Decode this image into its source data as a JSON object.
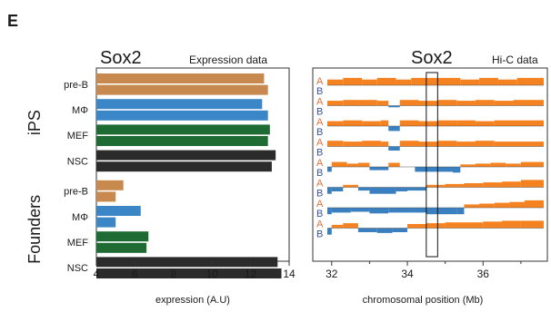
{
  "panel_label": "E",
  "colors": {
    "pre-B": "#C8894E",
    "MΦ": "#3A86C6",
    "MEF": "#1E6B33",
    "NSC": "#2B2B2B",
    "compA": "#F58220",
    "compB": "#3A7FC0",
    "letterA": "#E0703A",
    "letterB": "#3A52A0"
  },
  "chart_data": [
    {
      "type": "bar",
      "orientation": "horizontal",
      "title": "Sox2",
      "subtitle": "Expression data",
      "xlabel": "expression (A.U)",
      "xlim": [
        4,
        14
      ],
      "xticks": [
        "4",
        "6",
        "8",
        "10",
        "12",
        "14"
      ],
      "groups": [
        {
          "name": "iPS",
          "categories": [
            {
              "label": "pre-B",
              "values": [
                12.7,
                12.9
              ]
            },
            {
              "label": "MΦ",
              "values": [
                12.6,
                12.9
              ]
            },
            {
              "label": "MEF",
              "values": [
                13.0,
                12.9
              ]
            },
            {
              "label": "NSC",
              "values": [
                13.3,
                13.1
              ]
            }
          ]
        },
        {
          "name": "Founders",
          "categories": [
            {
              "label": "pre-B",
              "values": [
                5.4,
                5.0
              ]
            },
            {
              "label": "MΦ",
              "values": [
                6.3,
                5.0
              ]
            },
            {
              "label": "MEF",
              "values": [
                6.7,
                6.6
              ]
            },
            {
              "label": "NSC",
              "values": [
                13.4,
                13.6
              ]
            }
          ]
        }
      ]
    },
    {
      "type": "area",
      "title": "Sox2",
      "subtitle": "Hi-C data",
      "xlabel": "chromosomal position (Mb)",
      "xlim": [
        31.5,
        37.7
      ],
      "xticks": [
        "32",
        "34",
        "36"
      ],
      "highlight_x": [
        34.5,
        34.8
      ],
      "track_letters": [
        "A",
        "B"
      ],
      "tracks": [
        [
          [
            31.5,
            0.0
          ],
          [
            31.7,
            0.7
          ],
          [
            32.3,
            0.9
          ],
          [
            32.8,
            0.7
          ],
          [
            33.2,
            0.9
          ],
          [
            33.7,
            0.7
          ],
          [
            34.1,
            0.9
          ],
          [
            34.9,
            0.9
          ],
          [
            35.4,
            0.7
          ],
          [
            35.9,
            0.9
          ],
          [
            36.4,
            0.7
          ],
          [
            36.9,
            0.9
          ],
          [
            37.7,
            0.9
          ]
        ],
        [
          [
            31.5,
            0.0
          ],
          [
            31.7,
            0.6
          ],
          [
            32.3,
            0.7
          ],
          [
            32.7,
            0.7
          ],
          [
            33.2,
            0.6
          ],
          [
            33.5,
            -0.2
          ],
          [
            33.8,
            0.7
          ],
          [
            34.3,
            0.6
          ],
          [
            34.8,
            0.7
          ],
          [
            35.3,
            0.6
          ],
          [
            35.8,
            0.7
          ],
          [
            36.3,
            0.6
          ],
          [
            36.8,
            0.7
          ],
          [
            37.7,
            0.7
          ]
        ],
        [
          [
            31.5,
            0.0
          ],
          [
            31.7,
            0.6
          ],
          [
            32.3,
            0.7
          ],
          [
            32.8,
            0.6
          ],
          [
            33.3,
            0.7
          ],
          [
            33.5,
            -0.6
          ],
          [
            33.8,
            0.7
          ],
          [
            34.3,
            0.6
          ],
          [
            34.8,
            0.7
          ],
          [
            35.3,
            0.7
          ],
          [
            35.8,
            0.6
          ],
          [
            36.3,
            0.7
          ],
          [
            37.7,
            0.7
          ]
        ],
        [
          [
            31.5,
            0.0
          ],
          [
            31.7,
            0.7
          ],
          [
            32.3,
            0.6
          ],
          [
            32.8,
            0.7
          ],
          [
            33.3,
            0.6
          ],
          [
            33.5,
            -0.5
          ],
          [
            33.8,
            0.7
          ],
          [
            34.3,
            0.6
          ],
          [
            34.8,
            0.7
          ],
          [
            35.3,
            0.6
          ],
          [
            35.8,
            0.7
          ],
          [
            36.3,
            0.6
          ],
          [
            37.7,
            0.7
          ]
        ],
        [
          [
            31.5,
            0.0
          ],
          [
            31.7,
            -0.6
          ],
          [
            32.0,
            0.6
          ],
          [
            32.4,
            0.4
          ],
          [
            32.7,
            0.5
          ],
          [
            33.0,
            -0.4
          ],
          [
            33.5,
            0.5
          ],
          [
            33.8,
            0.0
          ],
          [
            34.2,
            -0.6
          ],
          [
            35.2,
            -0.7
          ],
          [
            35.4,
            0.3
          ],
          [
            35.8,
            0.4
          ],
          [
            36.2,
            0.5
          ],
          [
            36.6,
            0.4
          ],
          [
            37.0,
            0.6
          ],
          [
            37.7,
            0.6
          ]
        ],
        [
          [
            31.5,
            0.0
          ],
          [
            31.7,
            -0.8
          ],
          [
            32.0,
            -0.5
          ],
          [
            32.3,
            0.3
          ],
          [
            32.7,
            -0.4
          ],
          [
            33.0,
            -0.8
          ],
          [
            33.7,
            -0.5
          ],
          [
            34.0,
            -0.4
          ],
          [
            34.5,
            0.3
          ],
          [
            35.0,
            0.4
          ],
          [
            35.5,
            0.5
          ],
          [
            36.0,
            0.6
          ],
          [
            36.5,
            0.7
          ],
          [
            37.0,
            0.9
          ],
          [
            37.7,
            0.9
          ]
        ],
        [
          [
            31.5,
            0.0
          ],
          [
            31.7,
            -0.8
          ],
          [
            32.0,
            -0.6
          ],
          [
            32.5,
            -0.5
          ],
          [
            33.0,
            -0.7
          ],
          [
            33.5,
            -0.6
          ],
          [
            34.0,
            -0.6
          ],
          [
            34.5,
            -0.8
          ],
          [
            35.3,
            -0.8
          ],
          [
            35.5,
            0.4
          ],
          [
            35.9,
            0.5
          ],
          [
            36.3,
            0.6
          ],
          [
            36.7,
            0.7
          ],
          [
            37.1,
            0.9
          ],
          [
            37.7,
            0.9
          ]
        ],
        [
          [
            31.5,
            0.0
          ],
          [
            31.7,
            -0.8
          ],
          [
            32.0,
            0.4
          ],
          [
            32.3,
            0.6
          ],
          [
            32.7,
            -0.5
          ],
          [
            33.2,
            -0.6
          ],
          [
            33.6,
            -0.5
          ],
          [
            34.0,
            0.5
          ],
          [
            34.5,
            0.6
          ],
          [
            35.0,
            0.7
          ],
          [
            35.5,
            0.7
          ],
          [
            36.0,
            0.8
          ],
          [
            36.5,
            0.9
          ],
          [
            37.0,
            0.9
          ],
          [
            37.7,
            0.9
          ]
        ]
      ]
    }
  ]
}
